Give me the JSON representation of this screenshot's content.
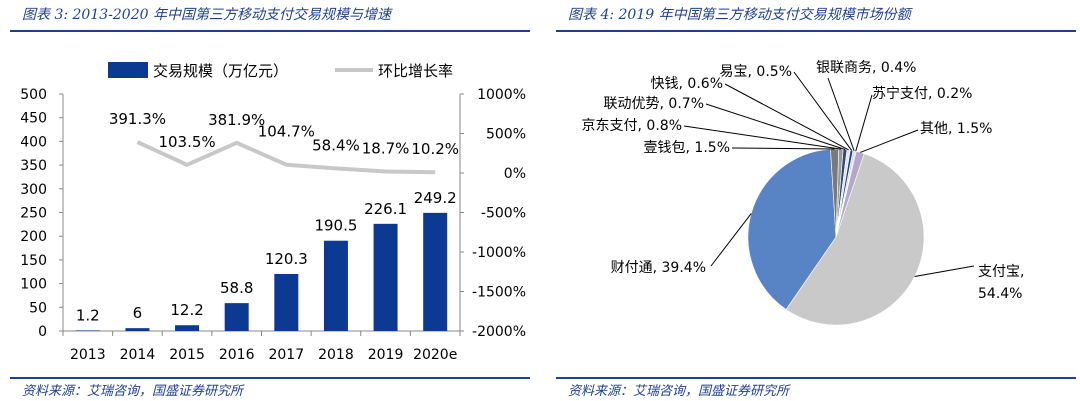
{
  "left_figure": {
    "title": "图表 3: 2013-2020 年中国第三方移动支付交易规模与增速",
    "source": "资料来源：艾瑞咨询，国盛证券研究所"
  },
  "right_figure": {
    "title": "图表 4: 2019 年中国第三方移动支付交易规模市场份额",
    "source": "资料来源：艾瑞咨询，国盛证券研究所"
  },
  "colors": {
    "bar": "#0c3a93",
    "line": "#c8c8c8",
    "rule": "#1f3f8f",
    "pie_alipay": "#c9c9c9",
    "pie_tenpay": "#5884c6"
  },
  "chart_data": [
    {
      "type": "bar",
      "categories": [
        "2013",
        "2014",
        "2015",
        "2016",
        "2017",
        "2018",
        "2019",
        "2020e"
      ],
      "series": [
        {
          "name": "交易规模（万亿元）",
          "kind": "bar",
          "axis": "left",
          "values": [
            1.2,
            6,
            12.2,
            58.8,
            120.3,
            190.5,
            226.1,
            249.2
          ],
          "labels": [
            "1.2",
            "6",
            "12.2",
            "58.8",
            "120.3",
            "190.5",
            "226.1",
            "249.2"
          ]
        },
        {
          "name": "环比增长率",
          "kind": "line",
          "axis": "right",
          "values": [
            null,
            391.3,
            103.5,
            381.9,
            104.7,
            58.4,
            18.7,
            10.2
          ],
          "labels": [
            "",
            "391.3%",
            "103.5%",
            "381.9%",
            "104.7%",
            "58.4%",
            "18.7%",
            "10.2%"
          ]
        }
      ],
      "ylim": [
        0,
        500
      ],
      "y_ticks": [
        "0",
        "50",
        "100",
        "150",
        "200",
        "250",
        "300",
        "350",
        "400",
        "450",
        "500"
      ],
      "y2lim": [
        -2000,
        1000
      ],
      "y2_ticks": [
        "-2000%",
        "-1500%",
        "-1000%",
        "-500%",
        "0%",
        "500%",
        "1000%"
      ],
      "legend_position": "top"
    },
    {
      "type": "pie",
      "slices": [
        {
          "label": "支付宝,",
          "label2": "54.4%",
          "value": 54.4
        },
        {
          "label": "财付通, 39.4%",
          "value": 39.4
        },
        {
          "label": "壹钱包, 1.5%",
          "value": 1.5
        },
        {
          "label": "京东支付, 0.8%",
          "value": 0.8
        },
        {
          "label": "联动优势, 0.7%",
          "value": 0.7
        },
        {
          "label": "快钱, 0.6%",
          "value": 0.6
        },
        {
          "label": "易宝, 0.5%",
          "value": 0.5
        },
        {
          "label": "银联商务, 0.4%",
          "value": 0.4
        },
        {
          "label": "苏宁支付, 0.2%",
          "value": 0.2
        },
        {
          "label": "其他, 1.5%",
          "value": 1.5
        }
      ]
    }
  ]
}
